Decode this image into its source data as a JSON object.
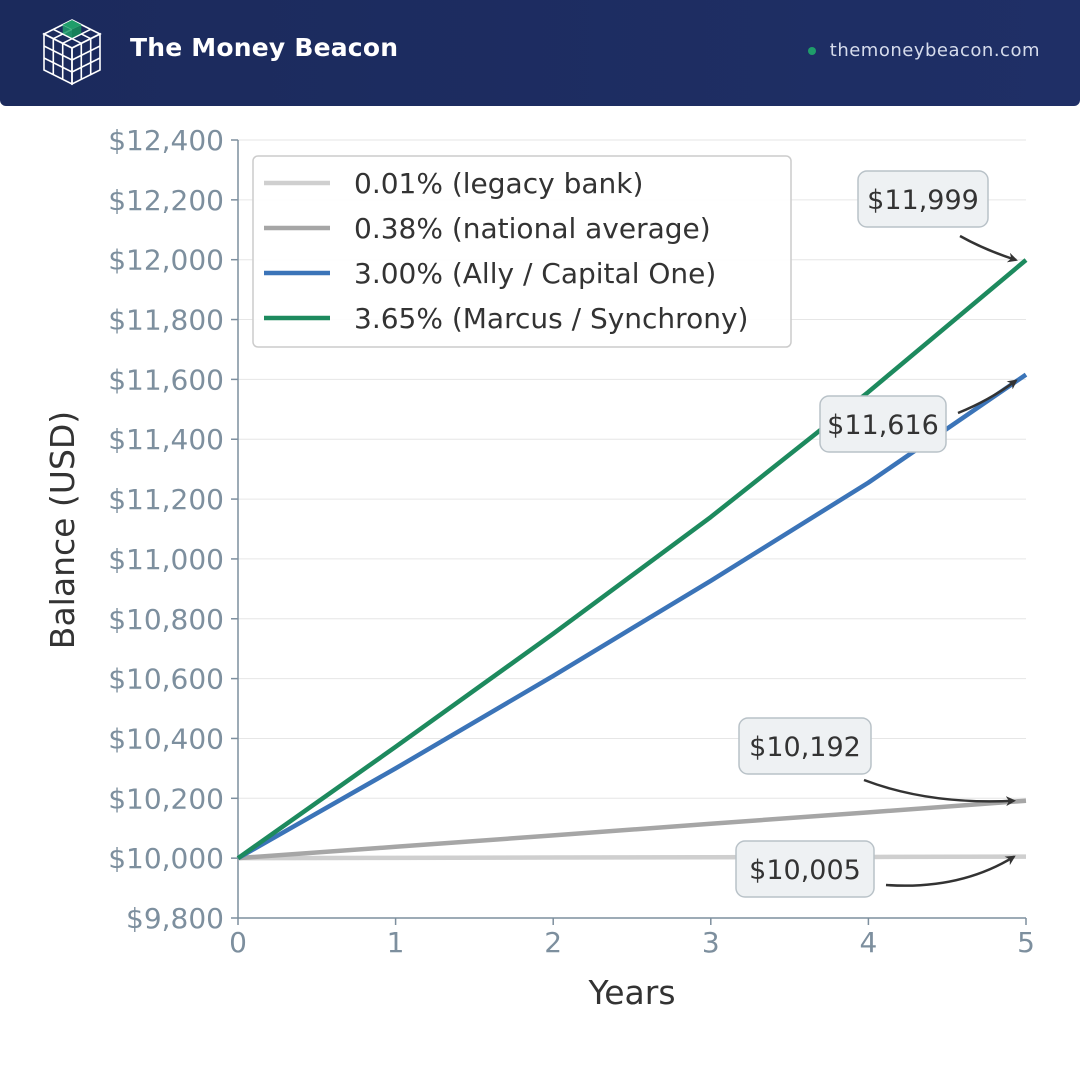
{
  "header": {
    "brand": "The Money Beacon",
    "website": "themoneybeacon.com",
    "logo_icon": "cube-grid-icon"
  },
  "colors": {
    "header_bg": "#1f2f66",
    "legacy": "#cfcfcf",
    "national": "#a6a6a6",
    "ally": "#3b74b8",
    "marcus": "#1d8a5e",
    "tick": "#7d8f9e"
  },
  "chart_data": {
    "type": "line",
    "xlabel": "Years",
    "ylabel": "Balance (USD)",
    "xlim": [
      0,
      5
    ],
    "ylim": [
      9800,
      12400
    ],
    "x_ticks": [
      "0",
      "1",
      "2",
      "3",
      "4",
      "5"
    ],
    "y_ticks": [
      "$9,800",
      "$10,000",
      "$10,200",
      "$10,400",
      "$10,600",
      "$10,800",
      "$11,000",
      "$11,200",
      "$11,400",
      "$11,600",
      "$11,800",
      "$12,000",
      "$12,200",
      "$12,400"
    ],
    "grid": "horizontal",
    "legend_position": "top-left",
    "series": [
      {
        "name": "0.01% (legacy bank)",
        "color": "#cfcfcf",
        "x": [
          0,
          1,
          2,
          3,
          4,
          5
        ],
        "values": [
          10000,
          10001,
          10002,
          10003,
          10004,
          10005
        ]
      },
      {
        "name": "0.38% (national average)",
        "color": "#a6a6a6",
        "x": [
          0,
          1,
          2,
          3,
          4,
          5
        ],
        "values": [
          10000,
          10038,
          10076,
          10115,
          10153,
          10192
        ]
      },
      {
        "name": "3.00% (Ally / Capital One)",
        "color": "#3b74b8",
        "x": [
          0,
          1,
          2,
          3,
          4,
          5
        ],
        "values": [
          10000,
          10300,
          10609,
          10927,
          11255,
          11616
        ]
      },
      {
        "name": "3.65% (Marcus / Synchrony)",
        "color": "#1d8a5e",
        "x": [
          0,
          1,
          2,
          3,
          4,
          5
        ],
        "values": [
          10000,
          10372,
          10750,
          11140,
          11558,
          11999
        ]
      }
    ],
    "annotations": [
      {
        "text": "$11,999",
        "series": 3
      },
      {
        "text": "$11,616",
        "series": 2
      },
      {
        "text": "$10,192",
        "series": 1
      },
      {
        "text": "$10,005",
        "series": 0
      }
    ]
  }
}
